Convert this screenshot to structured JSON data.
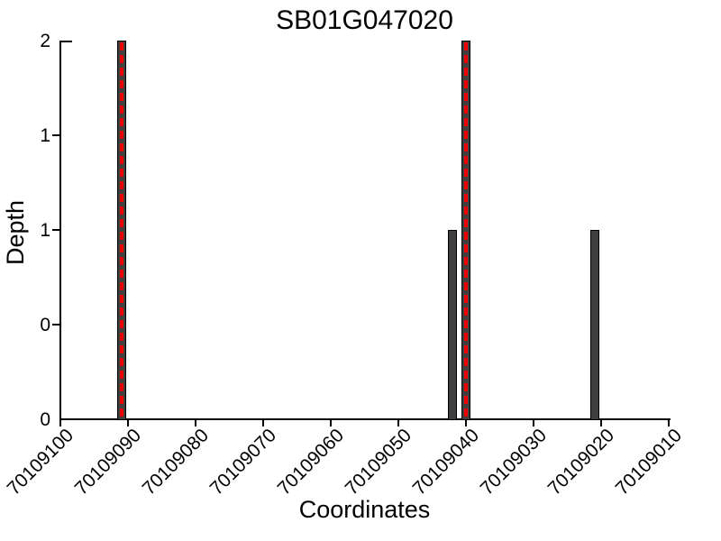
{
  "title": "SB01G047020",
  "chart_data": {
    "type": "bar",
    "title": "SB01G047020",
    "xlabel": "Coordinates",
    "ylabel": "Depth",
    "x_axis_reversed": true,
    "xlim": [
      70109100,
      70109010
    ],
    "ylim": [
      0,
      2
    ],
    "grid": false,
    "legend": "none",
    "x_ticks": [
      {
        "value": 70109100,
        "label": "70109100"
      },
      {
        "value": 70109090,
        "label": "70109090"
      },
      {
        "value": 70109080,
        "label": "70109080"
      },
      {
        "value": 70109070,
        "label": "70109070"
      },
      {
        "value": 70109060,
        "label": "70109060"
      },
      {
        "value": 70109050,
        "label": "70109050"
      },
      {
        "value": 70109040,
        "label": "70109040"
      },
      {
        "value": 70109030,
        "label": "70109030"
      },
      {
        "value": 70109020,
        "label": "70109020"
      },
      {
        "value": 70109010,
        "label": "70109010"
      }
    ],
    "y_ticks": [
      {
        "value": 0,
        "label": "0"
      },
      {
        "value": 0.5,
        "label": "0"
      },
      {
        "value": 1,
        "label": "1"
      },
      {
        "value": 1.5,
        "label": "1"
      },
      {
        "value": 2,
        "label": "2"
      }
    ],
    "bars": [
      {
        "coordinate": 70109091,
        "depth": 2,
        "red_dashed_marker": true
      },
      {
        "coordinate": 70109042,
        "depth": 1,
        "red_dashed_marker": false
      },
      {
        "coordinate": 70109040,
        "depth": 2,
        "red_dashed_marker": true
      },
      {
        "coordinate": 70109021,
        "depth": 1,
        "red_dashed_marker": false
      }
    ],
    "colors": {
      "bar_fill": "#3f3f3f",
      "bar_edge": "#000000",
      "marker_red": "#ee0000",
      "axis": "#000000",
      "text": "#000000",
      "background": "#ffffff"
    }
  }
}
